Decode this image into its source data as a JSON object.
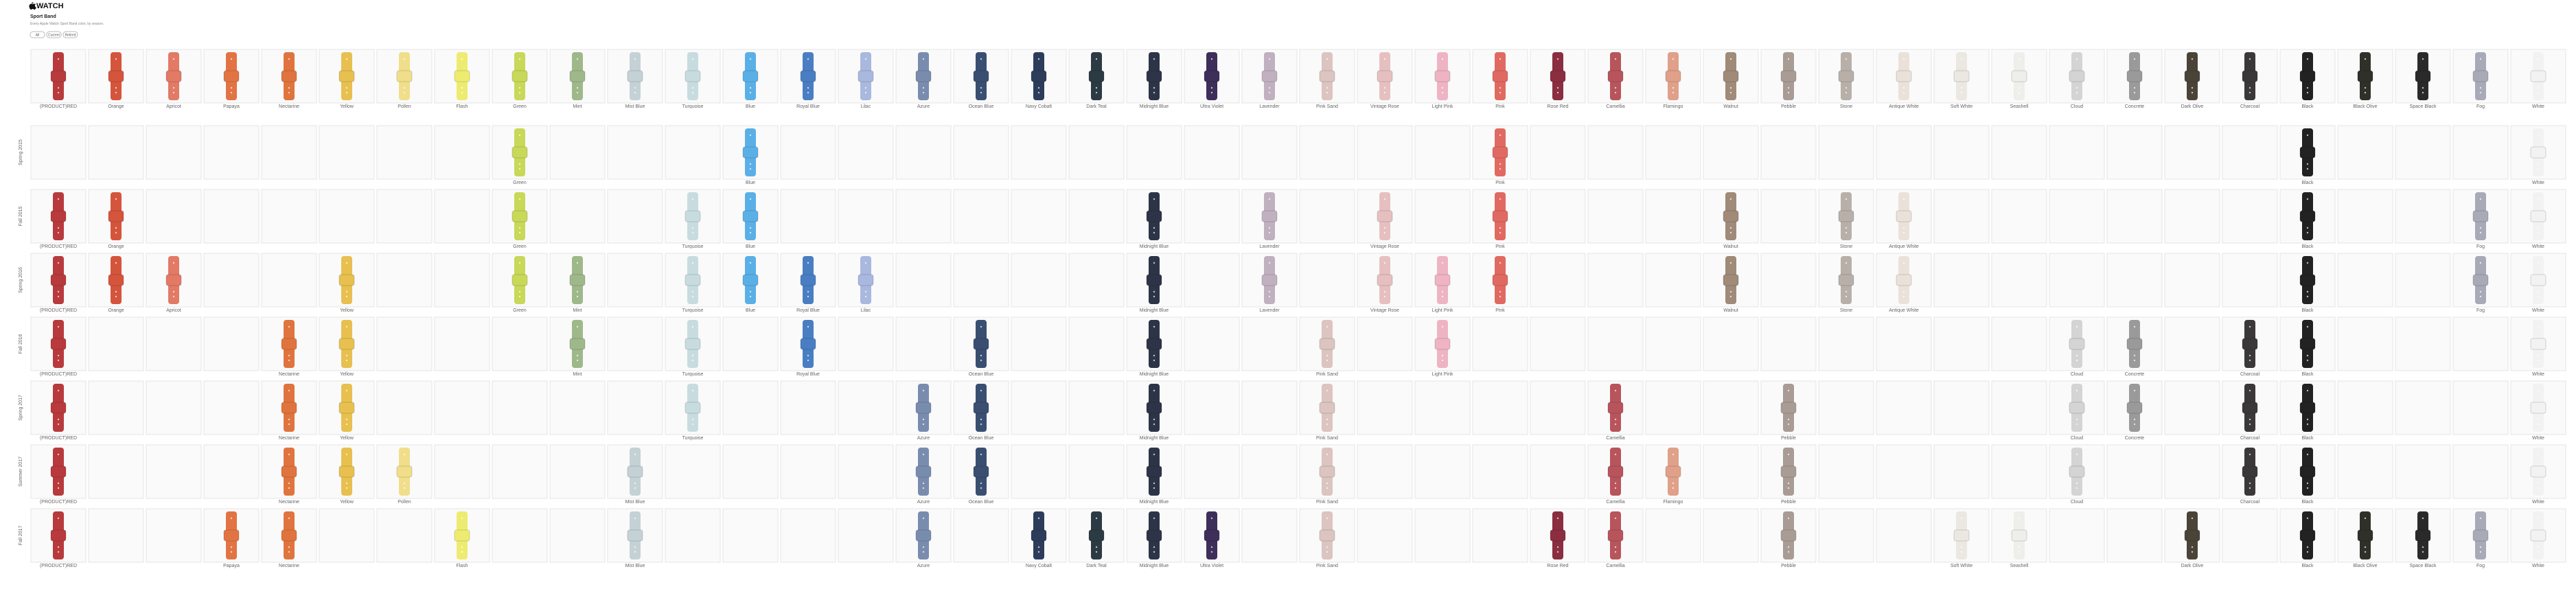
{
  "header": {
    "brand": "WATCH",
    "title": "Sport Band",
    "description": "Every Apple Watch Sport Band color, by season.",
    "buttons": [
      "All",
      "Current",
      "Retired"
    ]
  },
  "colors": [
    {
      "name": "(PRODUCT)RED",
      "color": "#b83a3c"
    },
    {
      "name": "Orange",
      "color": "#d4553c"
    },
    {
      "name": "Apricot",
      "color": "#e27a66"
    },
    {
      "name": "Papaya",
      "color": "#e27443"
    },
    {
      "name": "Nectarine",
      "color": "#e0743e"
    },
    {
      "name": "Yellow",
      "color": "#e8c050"
    },
    {
      "name": "Pollen",
      "color": "#f0de8a"
    },
    {
      "name": "Flash",
      "color": "#eeec70"
    },
    {
      "name": "Green",
      "color": "#c8d858"
    },
    {
      "name": "Mint",
      "color": "#9fb88a"
    },
    {
      "name": "Mist Blue",
      "color": "#c4d2d6"
    },
    {
      "name": "Turquoise",
      "color": "#c8dce0"
    },
    {
      "name": "Blue",
      "color": "#5ab0e6"
    },
    {
      "name": "Royal Blue",
      "color": "#4a7ec2"
    },
    {
      "name": "Lilac",
      "color": "#a8b8de"
    },
    {
      "name": "Azure",
      "color": "#7a8cae"
    },
    {
      "name": "Ocean Blue",
      "color": "#3a4e72"
    },
    {
      "name": "Navy Cobalt",
      "color": "#2e3c5c"
    },
    {
      "name": "Dark Teal",
      "color": "#2c3a44"
    },
    {
      "name": "Midnight Blue",
      "color": "#2e3448"
    },
    {
      "name": "Ultra Violet",
      "color": "#3e2e5a"
    },
    {
      "name": "Lavender",
      "color": "#c0b0c0"
    },
    {
      "name": "Pink Sand",
      "color": "#dcc4c0"
    },
    {
      "name": "Vintage Rose",
      "color": "#e6c0c0"
    },
    {
      "name": "Light Pink",
      "color": "#eeb4c4"
    },
    {
      "name": "Pink",
      "color": "#e06a62"
    },
    {
      "name": "Rose Red",
      "color": "#8a2e40"
    },
    {
      "name": "Camellia",
      "color": "#b8545c"
    },
    {
      "name": "Flamingo",
      "color": "#e0a08a"
    },
    {
      "name": "Walnut",
      "color": "#a08a78"
    },
    {
      "name": "Pebble",
      "color": "#a89c94"
    },
    {
      "name": "Stone",
      "color": "#b8b0a8"
    },
    {
      "name": "Antique White",
      "color": "#eae2d8"
    },
    {
      "name": "Soft White",
      "color": "#ebe8e2"
    },
    {
      "name": "Seashell",
      "color": "#eeeeea"
    },
    {
      "name": "Cloud",
      "color": "#d4d4d4"
    },
    {
      "name": "Concrete",
      "color": "#9a9a9a"
    },
    {
      "name": "Dark Olive",
      "color": "#4a4438"
    },
    {
      "name": "Charcoal",
      "color": "#3a3838"
    },
    {
      "name": "Black",
      "color": "#222222"
    },
    {
      "name": "Black Olive",
      "color": "#30302a"
    },
    {
      "name": "Space Black",
      "color": "#2a2a2a"
    },
    {
      "name": "Fog",
      "color": "#a8aab8"
    },
    {
      "name": "White",
      "color": "#f2f2f2"
    }
  ],
  "seasons": [
    {
      "label": "Spring 2015",
      "bands": [
        "Green",
        "Blue",
        "Pink",
        "Black",
        "White"
      ]
    },
    {
      "label": "Fall 2015",
      "bands": [
        "(PRODUCT)RED",
        "Orange",
        "Green",
        "Turquoise",
        "Blue",
        "Midnight Blue",
        "Lavender",
        "Vintage Rose",
        "Pink",
        "Walnut",
        "Stone",
        "Antique White",
        "Black",
        "Fog",
        "White"
      ]
    },
    {
      "label": "Spring 2016",
      "bands": [
        "(PRODUCT)RED",
        "Orange",
        "Apricot",
        "Yellow",
        "Green",
        "Mint",
        "Turquoise",
        "Blue",
        "Royal Blue",
        "Lilac",
        "Midnight Blue",
        "Lavender",
        "Vintage Rose",
        "Light Pink",
        "Pink",
        "Walnut",
        "Stone",
        "Antique White",
        "Black",
        "Fog",
        "White"
      ]
    },
    {
      "label": "Fall 2016",
      "bands": [
        "(PRODUCT)RED",
        "Nectarine",
        "Yellow",
        "Mint",
        "Turquoise",
        "Royal Blue",
        "Ocean Blue",
        "Midnight Blue",
        "Pink Sand",
        "Light Pink",
        "Cloud",
        "Concrete",
        "Charcoal",
        "Black",
        "White"
      ]
    },
    {
      "label": "Spring 2017",
      "bands": [
        "(PRODUCT)RED",
        "Nectarine",
        "Yellow",
        "Turquoise",
        "Azure",
        "Ocean Blue",
        "Midnight Blue",
        "Pink Sand",
        "Camellia",
        "Pebble",
        "Cloud",
        "Concrete",
        "Charcoal",
        "Black",
        "White"
      ]
    },
    {
      "label": "Summer 2017",
      "bands": [
        "(PRODUCT)RED",
        "Nectarine",
        "Yellow",
        "Pollen",
        "Mist Blue",
        "Azure",
        "Ocean Blue",
        "Midnight Blue",
        "Pink Sand",
        "Camellia",
        "Flamingo",
        "Pebble",
        "Cloud",
        "Charcoal",
        "Black",
        "White"
      ]
    },
    {
      "label": "Fall 2017",
      "bands": [
        "(PRODUCT)RED",
        "Papaya",
        "Nectarine",
        "Flash",
        "Mist Blue",
        "Azure",
        "Navy Cobalt",
        "Dark Teal",
        "Midnight Blue",
        "Ultra Violet",
        "Pink Sand",
        "Rose Red",
        "Camellia",
        "Pebble",
        "Soft White",
        "Seashell",
        "Dark Olive",
        "Black",
        "Black Olive",
        "Space Black",
        "Fog",
        "White"
      ]
    }
  ]
}
